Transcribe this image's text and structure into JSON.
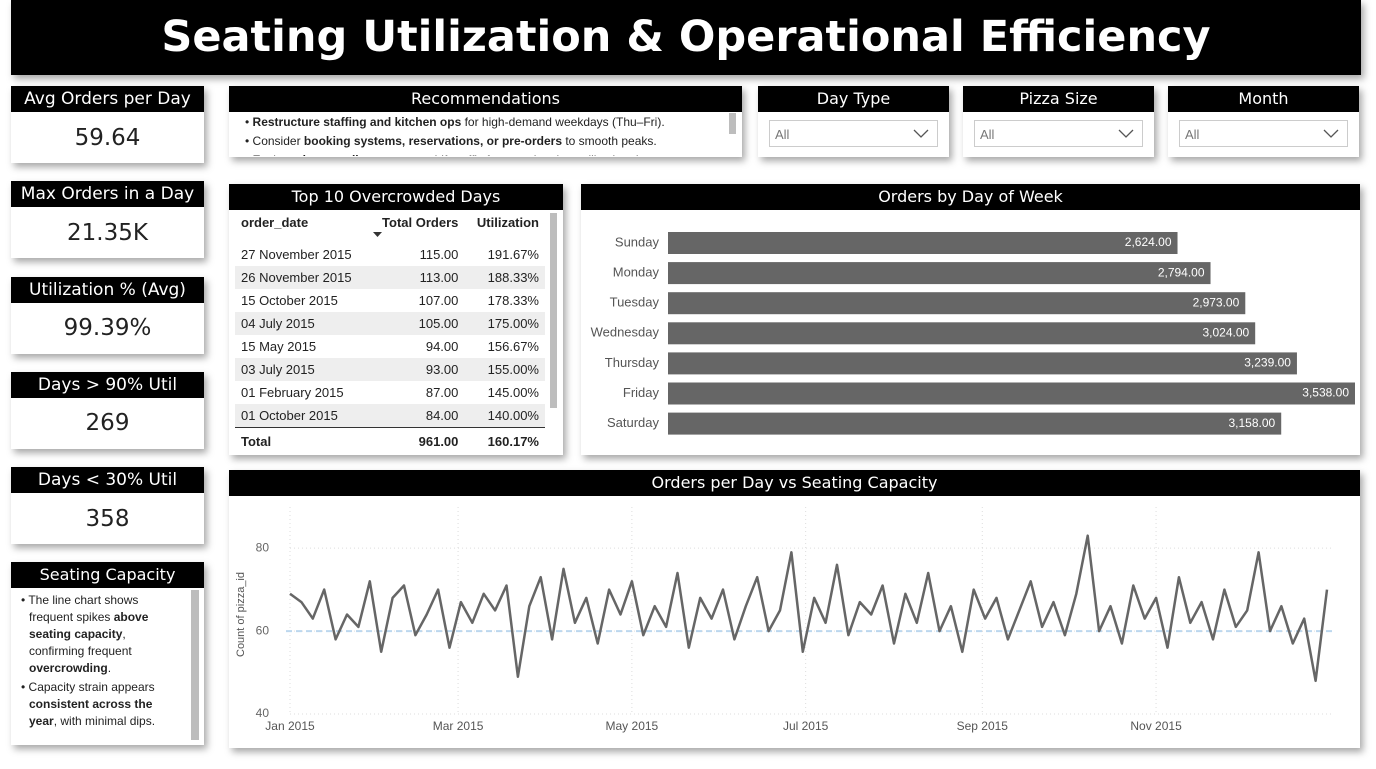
{
  "header": {
    "title": "Seating Utilization & Operational Efficiency"
  },
  "kpis": [
    {
      "label": "Avg Orders per Day",
      "value": "59.64"
    },
    {
      "label": "Max Orders in a Day",
      "value": "21.35K"
    },
    {
      "label": "Utilization % (Avg)",
      "value": "99.39%"
    },
    {
      "label": "Days > 90% Util",
      "value": "269"
    },
    {
      "label": "Days < 30% Util",
      "value": "358"
    }
  ],
  "recommendations": {
    "title": "Recommendations",
    "items": [
      [
        {
          "text": "Restructure staffing and kitchen ops",
          "bold": true
        },
        {
          "text": " for high-demand weekdays (Thu–Fri)."
        }
      ],
      [
        {
          "text": "Consider "
        },
        {
          "text": "booking systems, reservations, or pre-orders",
          "bold": true
        },
        {
          "text": " to smooth peaks."
        }
      ],
      [
        {
          "text": "Evaluate "
        },
        {
          "text": "layout adjustments",
          "bold": true
        },
        {
          "text": " to shift traffic from peak to low-utilization days."
        }
      ]
    ]
  },
  "filters": [
    {
      "label": "Day Type",
      "value": "All"
    },
    {
      "label": "Pizza Size",
      "value": "All"
    },
    {
      "label": "Month",
      "value": "All"
    }
  ],
  "notes": {
    "title": "Seating Capacity",
    "items": [
      [
        {
          "text": "The line chart shows frequent spikes "
        },
        {
          "text": "above seating capacity",
          "bold": true
        },
        {
          "text": ", confirming frequent "
        },
        {
          "text": "overcrowding",
          "bold": true
        },
        {
          "text": "."
        }
      ],
      [
        {
          "text": "Capacity strain appears "
        },
        {
          "text": "consistent across the year",
          "bold": true
        },
        {
          "text": ", with minimal dips."
        }
      ]
    ]
  },
  "table": {
    "title": "Top 10 Overcrowded Days",
    "columns": [
      "order_date",
      "Total Orders",
      "Utilization"
    ],
    "rows": [
      [
        "27 November 2015",
        "115.00",
        "191.67%"
      ],
      [
        "26 November 2015",
        "113.00",
        "188.33%"
      ],
      [
        "15 October 2015",
        "107.00",
        "178.33%"
      ],
      [
        "04 July 2015",
        "105.00",
        "175.00%"
      ],
      [
        "15 May 2015",
        "94.00",
        "156.67%"
      ],
      [
        "03 July 2015",
        "93.00",
        "155.00%"
      ],
      [
        "01 February 2015",
        "87.00",
        "145.00%"
      ],
      [
        "01 October 2015",
        "84.00",
        "140.00%"
      ]
    ],
    "total": [
      "Total",
      "961.00",
      "160.17%"
    ]
  },
  "chart_data": [
    {
      "type": "bar",
      "orientation": "horizontal",
      "title": "Orders by Day of Week",
      "categories": [
        "Sunday",
        "Monday",
        "Tuesday",
        "Wednesday",
        "Thursday",
        "Friday",
        "Saturday"
      ],
      "values": [
        2624,
        2794,
        2973,
        3024,
        3239,
        3538,
        3158
      ],
      "value_labels": [
        "2,624.00",
        "2,794.00",
        "2,973.00",
        "3,024.00",
        "3,239.00",
        "3,538.00",
        "3,158.00"
      ],
      "color": "#666666"
    },
    {
      "type": "line",
      "title": "Orders per Day vs Seating Capacity",
      "ylabel": "Count of pizza_id",
      "color": "#666666",
      "x": [
        1,
        5,
        9,
        13,
        17,
        21,
        25,
        29,
        33,
        37,
        41,
        45,
        49,
        53,
        57,
        61,
        65,
        69,
        73,
        77,
        81,
        85,
        89,
        93,
        97,
        101,
        105,
        109,
        113,
        117,
        121,
        125,
        129,
        133,
        137,
        141,
        145,
        149,
        153,
        157,
        161,
        165,
        169,
        173,
        177,
        181,
        185,
        189,
        193,
        197,
        201,
        205,
        209,
        213,
        217,
        221,
        225,
        229,
        233,
        237,
        241,
        245,
        249,
        253,
        257,
        261,
        265,
        269,
        273,
        277,
        281,
        285,
        289,
        293,
        297,
        301,
        305,
        309,
        313,
        317,
        321,
        325,
        329,
        333,
        337,
        341,
        345,
        349,
        353,
        357,
        361,
        365
      ],
      "values": [
        69,
        67,
        63,
        70,
        58,
        64,
        61,
        72,
        55,
        68,
        71,
        59,
        64,
        70,
        56,
        67,
        62,
        69,
        65,
        71,
        49,
        66,
        73,
        58,
        75,
        62,
        68,
        57,
        70,
        64,
        72,
        59,
        66,
        61,
        74,
        56,
        68,
        63,
        70,
        58,
        66,
        73,
        60,
        65,
        79,
        55,
        68,
        62,
        76,
        59,
        67,
        64,
        71,
        57,
        69,
        62,
        74,
        60,
        66,
        55,
        70,
        63,
        68,
        58,
        65,
        72,
        61,
        67,
        59,
        69,
        83,
        60,
        66,
        57,
        71,
        63,
        68,
        56,
        73,
        62,
        67,
        58,
        70,
        61,
        65,
        79,
        60,
        66,
        57,
        63,
        48,
        70
      ],
      "xlim": [
        1,
        365
      ],
      "xticks": [
        {
          "value": 1,
          "label": "Jan 2015"
        },
        {
          "value": 60,
          "label": "Mar 2015"
        },
        {
          "value": 121,
          "label": "May 2015"
        },
        {
          "value": 182,
          "label": "Jul 2015"
        },
        {
          "value": 244,
          "label": "Sep 2015"
        },
        {
          "value": 305,
          "label": "Nov 2015"
        }
      ],
      "ylim": [
        40,
        88
      ],
      "yticks": [
        40,
        60,
        80
      ],
      "grid": true,
      "hline": {
        "value": 60,
        "color": "#bcd7ee"
      }
    }
  ]
}
